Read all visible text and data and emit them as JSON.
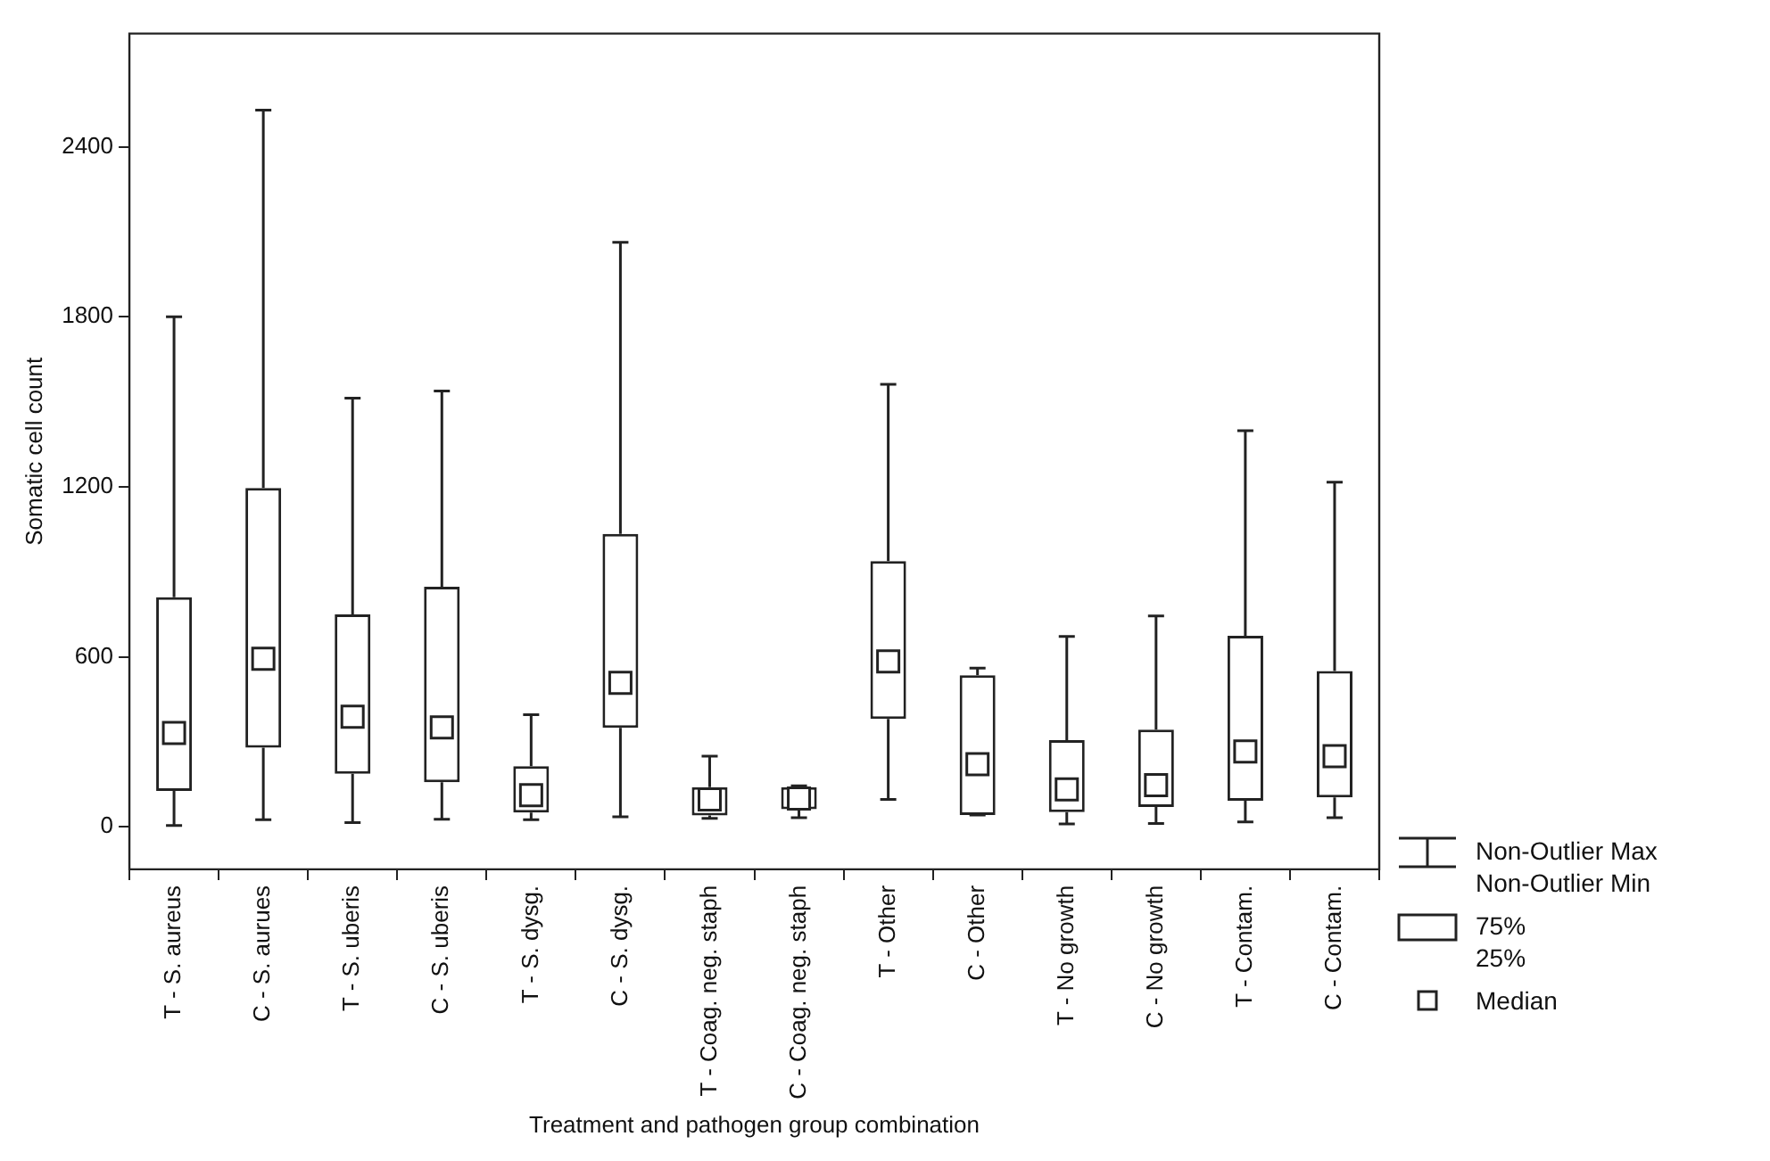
{
  "chart_data": {
    "type": "box",
    "xlabel": "Treatment and pathogen group combination",
    "ylabel": "Somatic cell count",
    "categories": [
      "T - S. aureus",
      "C - S. aurues",
      "T - S. uberis",
      "C - S. uberis",
      "T - S. dysg.",
      "C - S. dysg.",
      "T - Coag. neg. staph",
      "C - Coag. neg. staph",
      "T - Other",
      "C - Other",
      "T - No growth",
      "C - No growth",
      "T - Contam.",
      "C - Contam."
    ],
    "boxes": [
      {
        "low": 5,
        "q1": 127,
        "median": 331,
        "q3": 810,
        "high": 1800
      },
      {
        "low": 25,
        "q1": 279,
        "median": 593,
        "q3": 1196,
        "high": 2530
      },
      {
        "low": 15,
        "q1": 187,
        "median": 389,
        "q3": 750,
        "high": 1513
      },
      {
        "low": 27,
        "q1": 157,
        "median": 351,
        "q3": 847,
        "high": 1538
      },
      {
        "low": 25,
        "q1": 50,
        "median": 112,
        "q3": 214,
        "high": 396
      },
      {
        "low": 35,
        "q1": 349,
        "median": 508,
        "q3": 1034,
        "high": 2063
      },
      {
        "low": 30,
        "q1": 40,
        "median": 97,
        "q3": 140,
        "high": 249
      },
      {
        "low": 32,
        "q1": 62,
        "median": 100,
        "q3": 140,
        "high": 145
      },
      {
        "low": 97,
        "q1": 381,
        "median": 584,
        "q3": 938,
        "high": 1562
      },
      {
        "low": 42,
        "q1": 42,
        "median": 221,
        "q3": 535,
        "high": 560
      },
      {
        "low": 10,
        "q1": 52,
        "median": 132,
        "q3": 306,
        "high": 672
      },
      {
        "low": 12,
        "q1": 70,
        "median": 147,
        "q3": 343,
        "high": 744
      },
      {
        "low": 17,
        "q1": 92,
        "median": 266,
        "q3": 674,
        "high": 1398
      },
      {
        "low": 32,
        "q1": 104,
        "median": 249,
        "q3": 550,
        "high": 1216
      }
    ],
    "ylim": [
      -150,
      2800
    ],
    "yticks": [
      0,
      600,
      1200,
      1800,
      2400
    ],
    "grid": false,
    "annotations": [
      "Non-Outlier Max",
      "Non-Outlier Min",
      "75%",
      "25%",
      "Median"
    ]
  }
}
